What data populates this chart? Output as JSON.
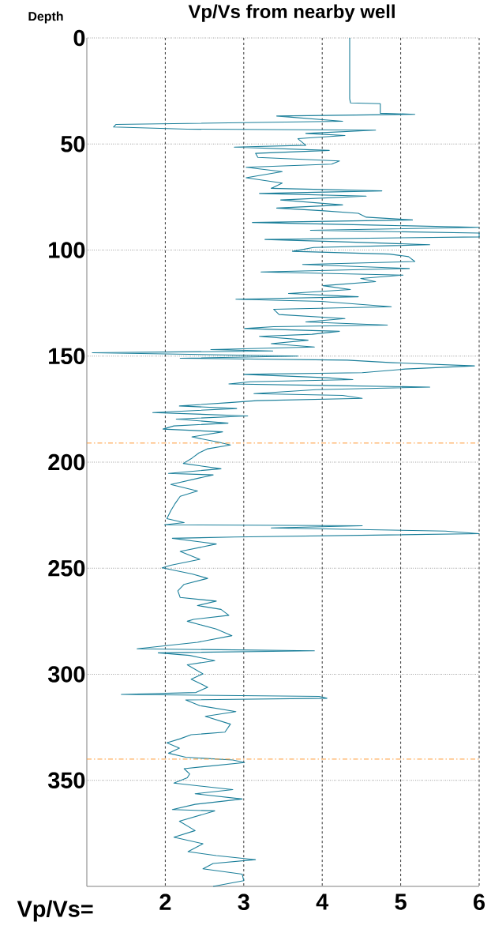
{
  "chart_data": {
    "type": "line",
    "title": "Vp/Vs from nearby well",
    "ylabel": "Depth",
    "xlabel": "Vp/Vs=",
    "xlim": [
      1,
      6
    ],
    "xticks": [
      2,
      3,
      4,
      5,
      6
    ],
    "ylim": [
      400,
      0
    ],
    "yticks": [
      0,
      50,
      100,
      150,
      200,
      250,
      300,
      350
    ],
    "grid": true,
    "ref_lines": [
      {
        "axis": "y",
        "value": 191,
        "color": "#ff9933",
        "line_style": "dashdot"
      },
      {
        "axis": "y",
        "value": 340,
        "color": "#ff9933",
        "line_style": "dashdot"
      }
    ],
    "series": [
      {
        "color": "#1b7f9a",
        "x": [
          4.35,
          4.35,
          4.36,
          4.74,
          4.74,
          5.18,
          3.42,
          4.26,
          1.37,
          1.34,
          2.28,
          4.68,
          3.79,
          4.29,
          3.69,
          3.79,
          2.88,
          4.09,
          3.15,
          3.18,
          4.22,
          4.12,
          3.03,
          3.49,
          3.03,
          3.49,
          3.35,
          4.76,
          3.2,
          4.56,
          3.47,
          4.26,
          3.42,
          3.99,
          4.46,
          4.56,
          5.15,
          3.11,
          4.63,
          6.0,
          3.85,
          6.0,
          6.0,
          3.27,
          4.43,
          5.37,
          3.89,
          3.62,
          4.86,
          5.1,
          5.18,
          3.75,
          5.11,
          3.22,
          5.03,
          4.49,
          4.68,
          4.01,
          4.36,
          3.57,
          4.46,
          2.9,
          3.99,
          4.88,
          3.38,
          3.45,
          4.29,
          3.79,
          4.83,
          3.38,
          3.01,
          4.22,
          3.87,
          3.2,
          3.82,
          3.35,
          3.9,
          2.58,
          3.37,
          1.07,
          3.69,
          2.19,
          4.32,
          4.9,
          5.94,
          5.06,
          4.51,
          3.0,
          4.06,
          4.39,
          3.08,
          2.81,
          4.17,
          5.37,
          3.92,
          3.13,
          4.26,
          4.51,
          3.17,
          2.78,
          2.18,
          2.91,
          1.84,
          3.05,
          2.14,
          2.8,
          2.11,
          1.97,
          2.73,
          2.34,
          2.68,
          2.83,
          2.54,
          2.43,
          2.34,
          2.23,
          2.71,
          2.04,
          2.61,
          2.44,
          2.07,
          2.41,
          2.19,
          2.12,
          2.07,
          2.02,
          2.24,
          1.99,
          4.51,
          3.35,
          5.57,
          6.0,
          2.88,
          2.09,
          2.65,
          2.19,
          2.44,
          2.07,
          1.96,
          2.34,
          2.54,
          2.24,
          2.16,
          2.19,
          2.65,
          2.41,
          2.71,
          2.81,
          2.36,
          2.28,
          2.65,
          2.85,
          2.41,
          1.64,
          3.9,
          1.91,
          2.31,
          2.63,
          2.28,
          2.48,
          2.33,
          2.54,
          2.39,
          1.44,
          3.96,
          4.06,
          2.26,
          2.44,
          2.9,
          2.51,
          2.83,
          2.76,
          2.33,
          2.19,
          2.02,
          2.18,
          2.04,
          2.26,
          2.86,
          3.01,
          2.24,
          2.31,
          2.28,
          2.11,
          2.86,
          2.38,
          2.98,
          2.38,
          2.09,
          2.63,
          2.18,
          2.38,
          2.11,
          2.48,
          2.29,
          2.65,
          3.15,
          2.61,
          2.48,
          2.98,
          3.0,
          2.61
        ],
        "values": [
          0,
          28.7,
          30.6,
          31,
          35.5,
          36,
          36.8,
          39.3,
          40.8,
          42,
          43,
          43.5,
          45,
          46,
          47.5,
          50.6,
          51.5,
          53,
          54.4,
          56.3,
          58,
          59.5,
          61,
          63,
          65.9,
          68.4,
          70.9,
          72.1,
          73.3,
          74.6,
          76.4,
          78.7,
          80.2,
          81.4,
          82.7,
          84.5,
          85.8,
          87,
          88.2,
          89.3,
          90.7,
          92,
          93.8,
          95,
          96.3,
          97.5,
          98.8,
          100.6,
          101.9,
          103.1,
          105.4,
          106.8,
          108.7,
          110.3,
          111.8,
          113.4,
          114.9,
          116.8,
          118.6,
          120.5,
          122,
          123.2,
          124.2,
          126.7,
          127.9,
          130.4,
          132.3,
          133.9,
          135.4,
          136.1,
          137,
          138.3,
          139.7,
          140.7,
          142.5,
          144.1,
          145.7,
          146.9,
          147.6,
          148.4,
          150,
          151,
          151.9,
          153.1,
          154.6,
          156.1,
          157.8,
          158.6,
          160.2,
          161.1,
          162.1,
          163.1,
          163.9,
          164.6,
          165.8,
          167.7,
          168.5,
          169.9,
          171,
          172,
          173.5,
          174.7,
          176.6,
          178.2,
          179.7,
          181.6,
          182.9,
          184.4,
          185.7,
          188.1,
          190.6,
          191.9,
          193.7,
          195.6,
          198.1,
          200.6,
          203.1,
          205.3,
          206,
          207.4,
          210.5,
          213.6,
          216.1,
          219.8,
          222.9,
          226.6,
          228.5,
          229.5,
          230,
          231,
          232.5,
          233.7,
          235.3,
          235.9,
          238.6,
          242.1,
          245.8,
          248.6,
          249.8,
          252.7,
          254.8,
          257.6,
          260.7,
          263.8,
          265.5,
          267.6,
          269.4,
          272.2,
          274.1,
          275,
          278.7,
          281.8,
          284.9,
          288,
          288.9,
          289.9,
          291.1,
          293.6,
          295.5,
          299.8,
          302.3,
          306.1,
          308.6,
          309.5,
          310.4,
          311.3,
          312.1,
          314.8,
          317.6,
          319.8,
          323.5,
          327.3,
          328.5,
          330.4,
          332.3,
          334.8,
          337.2,
          339.1,
          340.4,
          341.6,
          344.5,
          347,
          348.8,
          351.3,
          354.4,
          356.3,
          358.8,
          361.3,
          363.8,
          364.4,
          369.3,
          373.7,
          376.8,
          379.9,
          383.6,
          385.5,
          387.4,
          389.2,
          391.7,
          394.2,
          397.3,
          400
        ]
      }
    ]
  }
}
